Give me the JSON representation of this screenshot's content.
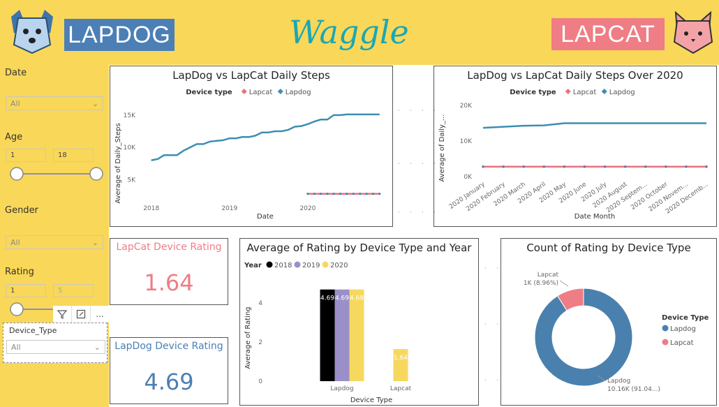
{
  "header": {
    "lapdog_logo": "LAPDOG",
    "lapcat_logo": "LAPCAT",
    "app_title": "Waggle",
    "colors": {
      "bar": "#f9d758",
      "lapdog": "#4b7fb6",
      "lapcat": "#ef7d85",
      "title": "#1aa7b5"
    }
  },
  "filters": {
    "date": {
      "label": "Date",
      "value": "All"
    },
    "age": {
      "label": "Age",
      "min": "1",
      "max": "18"
    },
    "gender": {
      "label": "Gender",
      "value": "All"
    },
    "rating": {
      "label": "Rating",
      "min": "1",
      "max": "5"
    },
    "device_type": {
      "label": "Device_Type",
      "value": "All"
    }
  },
  "cards": {
    "lapcat": {
      "title": "LapCat Device Rating",
      "value": "1.64"
    },
    "lapdog": {
      "title": "LapDog Device Rating",
      "value": "4.69"
    }
  },
  "chart_data": [
    {
      "type": "line",
      "title": "LapDog vs LapCat Daily Steps",
      "xlabel": "Date",
      "ylabel": "Average of Daily_Steps",
      "legend_title": "Device type",
      "x_ticks": [
        "2018",
        "2019",
        "2020"
      ],
      "y_ticks": [
        "5K",
        "10K",
        "15K"
      ],
      "ylim": [
        2000,
        16500
      ],
      "series": [
        {
          "name": "Lapdog",
          "color": "#3d8eb0",
          "x": [
            "2018-01",
            "2018-02",
            "2018-03",
            "2018-04",
            "2018-05",
            "2018-06",
            "2018-07",
            "2018-08",
            "2018-09",
            "2018-10",
            "2018-11",
            "2018-12",
            "2019-01",
            "2019-02",
            "2019-03",
            "2019-04",
            "2019-05",
            "2019-06",
            "2019-07",
            "2019-08",
            "2019-09",
            "2019-10",
            "2019-11",
            "2019-12",
            "2020-01",
            "2020-02",
            "2020-03",
            "2020-04",
            "2020-05",
            "2020-06",
            "2020-07",
            "2020-08",
            "2020-09",
            "2020-10",
            "2020-11",
            "2020-12"
          ],
          "values": [
            8000,
            8200,
            8800,
            8800,
            8800,
            9500,
            10000,
            10500,
            10500,
            10900,
            11000,
            11100,
            11400,
            11400,
            11600,
            11600,
            11800,
            12300,
            12300,
            12500,
            12500,
            12700,
            13200,
            13300,
            13600,
            14000,
            14300,
            14300,
            15000,
            15000,
            15100,
            15100,
            15100,
            15100,
            15100,
            15100
          ]
        },
        {
          "name": "Lapcat",
          "color": "#e8727d",
          "x": [
            "2020-01",
            "2020-02",
            "2020-03",
            "2020-04",
            "2020-05",
            "2020-06",
            "2020-07",
            "2020-08",
            "2020-09",
            "2020-10",
            "2020-11",
            "2020-12"
          ],
          "values": [
            2800,
            2800,
            2800,
            2800,
            2800,
            2800,
            2800,
            2800,
            2800,
            2800,
            2800,
            2800
          ]
        }
      ]
    },
    {
      "type": "line",
      "title": "LapDog vs LapCat Daily Steps Over 2020",
      "xlabel": "Date Month",
      "ylabel": "Average of Daily_...",
      "legend_title": "Device type",
      "categories": [
        "2020 January",
        "2020 February",
        "2020 March",
        "2020 April",
        "2020 May",
        "2020 June",
        "2020 July",
        "2020 August",
        "2020 Septem...",
        "2020 October",
        "2020 Novem...",
        "2020 Decemb..."
      ],
      "y_ticks": [
        "0K",
        "10K",
        "20K"
      ],
      "ylim": [
        0,
        20000
      ],
      "series": [
        {
          "name": "Lapdog",
          "color": "#3d8eb0",
          "values": [
            13700,
            14000,
            14300,
            14400,
            15000,
            15000,
            15000,
            15000,
            15000,
            15000,
            15000,
            15000
          ]
        },
        {
          "name": "Lapcat",
          "color": "#e8727d",
          "values": [
            2800,
            2800,
            2800,
            2800,
            2800,
            2800,
            2800,
            2800,
            2800,
            2800,
            2800,
            2800
          ]
        }
      ]
    },
    {
      "type": "bar",
      "title": "Average of Rating by Device Type and Year",
      "xlabel": "Device Type",
      "ylabel": "Average of Rating",
      "legend_title": "Year",
      "categories": [
        "Lapdog",
        "Lapcat"
      ],
      "y_ticks": [
        "0",
        "2",
        "4"
      ],
      "ylim": [
        0,
        5
      ],
      "series": [
        {
          "name": "2018",
          "color": "#000000",
          "values": [
            4.69,
            null
          ]
        },
        {
          "name": "2019",
          "color": "#9b8fc9",
          "values": [
            4.69,
            null
          ]
        },
        {
          "name": "2020",
          "color": "#f7d85e",
          "values": [
            4.69,
            1.64
          ]
        }
      ],
      "data_labels": [
        "4.69",
        "4.69",
        "4.69",
        "1.64"
      ]
    },
    {
      "type": "pie",
      "title": "Count of Rating by Device Type",
      "legend_title": "Device Type",
      "slices": [
        {
          "name": "Lapdog",
          "value": 10160,
          "label": "Lapdog\n10.16K (91.04...)",
          "color": "#4a80ad"
        },
        {
          "name": "Lapcat",
          "value": 1000,
          "label": "Lapcat\n1K (8.96%)",
          "color": "#ef7d85"
        }
      ],
      "donut": true
    }
  ],
  "toolbar": {
    "filter_icon": "filter-icon",
    "focus_icon": "focus-mode-icon",
    "more_label": "..."
  }
}
